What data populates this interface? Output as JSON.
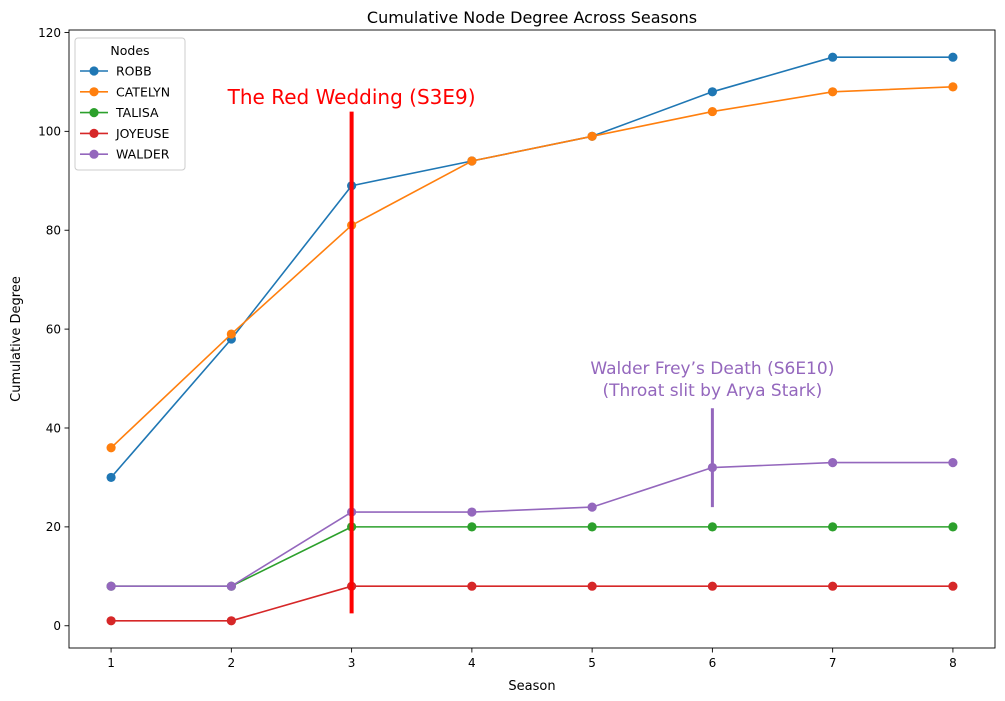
{
  "chart_data": {
    "type": "line",
    "title": "Cumulative Node Degree Across Seasons",
    "xlabel": "Season",
    "ylabel": "Cumulative Degree",
    "x": [
      1,
      2,
      3,
      4,
      5,
      6,
      7,
      8
    ],
    "xlim": [
      0.65,
      8.35
    ],
    "ylim": [
      -4.5,
      120.5
    ],
    "xticks": [
      1,
      2,
      3,
      4,
      5,
      6,
      7,
      8
    ],
    "yticks": [
      0,
      20,
      40,
      60,
      80,
      100,
      120
    ],
    "grid": false,
    "legend": {
      "title": "Nodes",
      "placement": "top-left"
    },
    "series": [
      {
        "name": "ROBB",
        "color": "#1f77b4",
        "values": [
          30,
          58,
          89,
          94,
          99,
          108,
          115,
          115
        ]
      },
      {
        "name": "CATELYN",
        "color": "#ff7f0e",
        "values": [
          36,
          59,
          81,
          94,
          99,
          104,
          108,
          109
        ]
      },
      {
        "name": "TALISA",
        "color": "#2ca02c",
        "values": [
          8,
          8,
          20,
          20,
          20,
          20,
          20,
          20
        ]
      },
      {
        "name": "JOYEUSE",
        "color": "#d62728",
        "values": [
          1,
          1,
          8,
          8,
          8,
          8,
          8,
          8
        ]
      },
      {
        "name": "WALDER",
        "color": "#9467bd",
        "values": [
          8,
          8,
          23,
          23,
          24,
          32,
          33,
          33
        ]
      }
    ],
    "annotations": [
      {
        "lines": [
          "The Red Wedding (S3E9)"
        ],
        "color": "#ff0000",
        "x": 3,
        "marker_y_range": [
          2.5,
          104
        ],
        "text_x": 3,
        "text_y": 105.5,
        "font_size": 20,
        "stroke_width": 4
      },
      {
        "lines": [
          "Walder Frey’s Death (S6E10)",
          "(Throat slit by Arya Stark)"
        ],
        "color": "#9467bd",
        "x": 6,
        "marker_y_range": [
          24,
          44
        ],
        "text_x": 6,
        "text_y": 46.5,
        "font_size": 17,
        "stroke_width": 3
      }
    ]
  }
}
